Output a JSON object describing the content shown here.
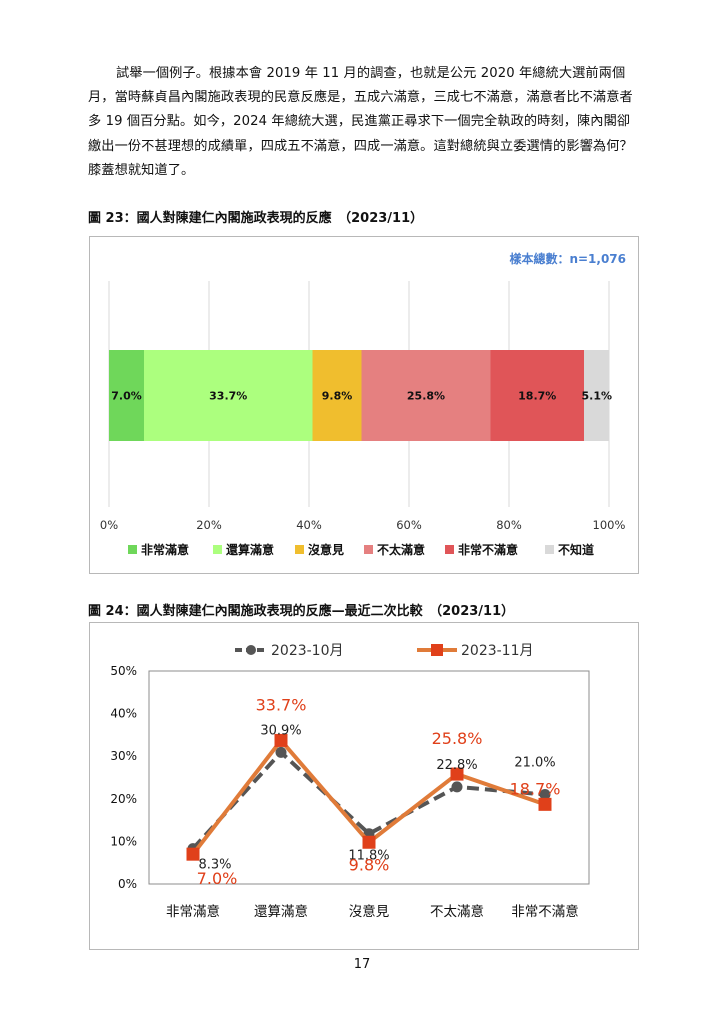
{
  "paragraph": "試舉一個例子。根據本會 2019 年 11 月的調查，也就是公元 2020 年總統大選前兩個月，當時蘇貞昌內閣施政表現的民意反應是，五成六滿意，三成七不滿意，滿意者比不滿意者多 19 個百分點。如今，2024 年總統大選，民進黨正尋求下一個完全執政的時刻，陳內閣卻繳出一份不甚理想的成績單，四成五不滿意，四成一滿意。這對總統與立委選情的影響為何？膝蓋想就知道了。",
  "figure23": {
    "caption": "圖 23：國人對陳建仁內閣施政表現的反應　（2023/11）"
  },
  "figure24": {
    "caption": "圖 24：國人對陳建仁內閣施政表現的反應—最近二次比較　（2023/11）"
  },
  "page_number": "17",
  "chart_data": [
    {
      "type": "bar",
      "orientation": "horizontal-stacked",
      "sample_note": "樣本總數：n=1,076",
      "categories": [
        "非常滿意",
        "還算滿意",
        "沒意見",
        "不太滿意",
        "非常不滿意",
        "不知道"
      ],
      "values": [
        7.0,
        33.7,
        9.8,
        25.8,
        18.7,
        5.1
      ],
      "value_labels": [
        "7.0%",
        "33.7%",
        "9.8%",
        "25.8%",
        "18.7%",
        "5.1%"
      ],
      "colors": [
        "#6fd75a",
        "#acff7e",
        "#f0be2e",
        "#e58080",
        "#e05558",
        "#d9d9d9"
      ],
      "ticks": [
        "0%",
        "20%",
        "40%",
        "60%",
        "80%",
        "100%"
      ],
      "xlim": [
        0,
        100
      ],
      "grid": true,
      "legend": "bottom"
    },
    {
      "type": "line",
      "categories": [
        "非常滿意",
        "還算滿意",
        "沒意見",
        "不太滿意",
        "非常不滿意"
      ],
      "ylim": [
        0,
        50
      ],
      "yticks": [
        "0%",
        "10%",
        "20%",
        "30%",
        "40%",
        "50%"
      ],
      "legend": "top",
      "series": [
        {
          "name": "2023-10月",
          "values": [
            8.3,
            30.9,
            11.8,
            22.8,
            21.0
          ],
          "labels": [
            "8.3%",
            "30.9%",
            "11.8%",
            "22.8%",
            "21.0%"
          ],
          "color": "#555555",
          "style": "dashed",
          "marker": "circle"
        },
        {
          "name": "2023-11月",
          "values": [
            7.0,
            33.7,
            9.8,
            25.8,
            18.7
          ],
          "labels": [
            "7.0%",
            "33.7%",
            "9.8%",
            "25.8%",
            "18.7%"
          ],
          "color": "#e07b39",
          "label_color": "#e0401a",
          "style": "solid",
          "marker": "square",
          "marker_color": "#e0401a"
        }
      ]
    }
  ]
}
